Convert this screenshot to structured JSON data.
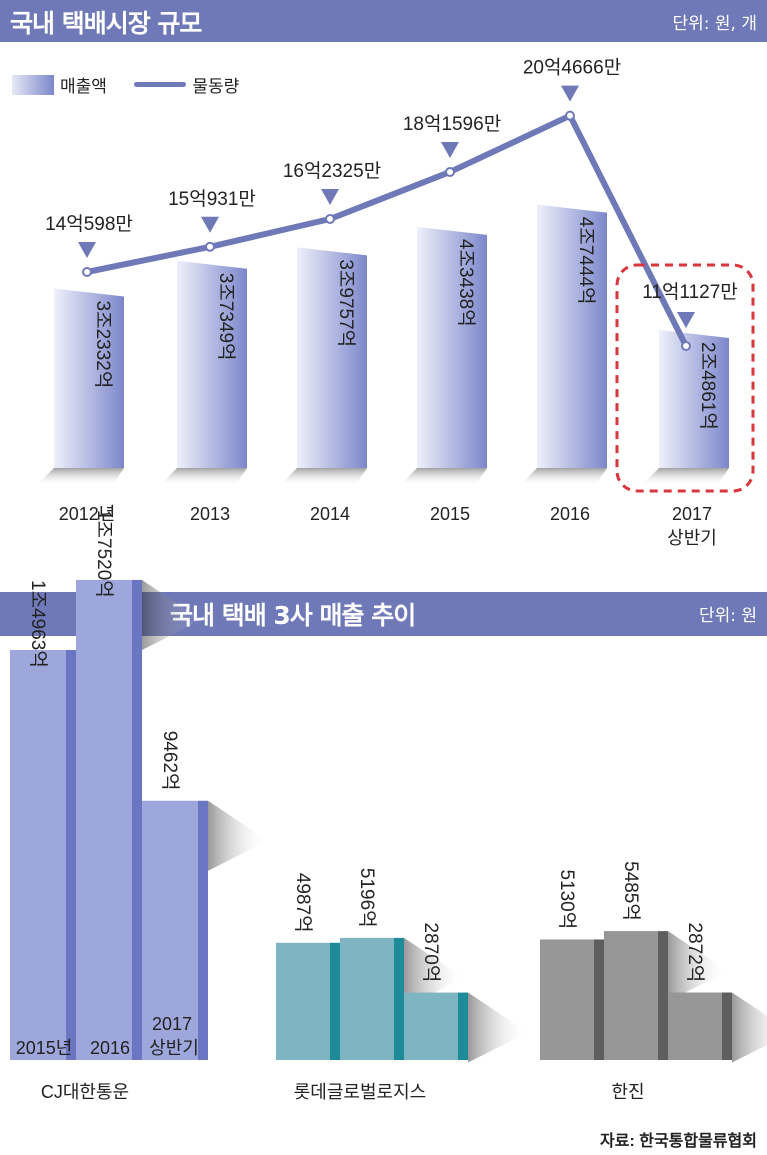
{
  "chart_data": [
    {
      "type": "bar",
      "title": "국내 택배시장 규모",
      "unit": "단위: 원, 개",
      "legend": [
        "매출액",
        "물동량"
      ],
      "categories": [
        "2012년",
        "2013",
        "2014",
        "2015",
        "2016",
        "2017 상반기"
      ],
      "series": [
        {
          "name": "매출액",
          "values": [
            32332,
            37349,
            39757,
            43438,
            47444,
            24861
          ],
          "labels": [
            "3조2332억",
            "3조7349억",
            "3조9757억",
            "4조3438억",
            "4조7444억",
            "2조4861억"
          ]
        },
        {
          "name": "물동량",
          "values": [
            140598,
            150931,
            162325,
            181596,
            204666,
            111127
          ],
          "labels": [
            "14억598만",
            "15억931만",
            "16억2325만",
            "18억1596만",
            "20억4666만",
            "11억1127만"
          ]
        }
      ],
      "highlight": "2017 상반기"
    },
    {
      "type": "bar",
      "title": "국내 택배 3사 매출 추이",
      "unit": "단위: 원",
      "groups": [
        {
          "name": "CJ대한통운",
          "periods": [
            "2015년",
            "2016",
            "2017 상반기"
          ],
          "values": [
            14963,
            17520,
            9462
          ],
          "labels": [
            "1조4963억",
            "1조7520억",
            "9462억"
          ],
          "color": "#9ea7dc",
          "side": "#6b76c2"
        },
        {
          "name": "롯데글로벌로지스",
          "values": [
            4987,
            5196,
            2870
          ],
          "labels": [
            "4987억",
            "5196억",
            "2870억"
          ],
          "color": "#7fb4c2",
          "side": "#1e8c98"
        },
        {
          "name": "한진",
          "values": [
            5130,
            5485,
            2872
          ],
          "labels": [
            "5130억",
            "5485억",
            "2872억"
          ],
          "color": "#979797",
          "side": "#5e5e5e"
        }
      ]
    }
  ],
  "source": "자료: 한국통합물류협회"
}
